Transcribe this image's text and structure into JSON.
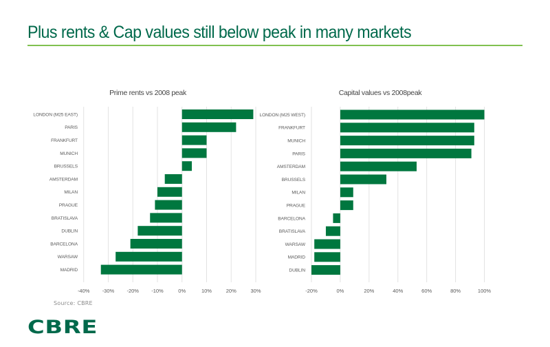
{
  "slide": {
    "title": "Plus rents & Cap values still below peak in many markets",
    "source": "Source: CBRE",
    "logo": "CBRE",
    "colors": {
      "title": "#00694B",
      "rule": "#80C050",
      "bar": "#00773F",
      "logo": "#00694B"
    }
  },
  "chart_data": [
    {
      "type": "bar",
      "orientation": "horizontal",
      "title": "Prime rents vs 2008 peak",
      "xlabel": "",
      "ylabel": "",
      "categories": [
        "LONDON (M25 EAST)",
        "PARIS",
        "FRANKFURT",
        "MUNICH",
        "BRUSSELS",
        "AMSTERDAM",
        "MILAN",
        "PRAGUE",
        "BRATISLAVA",
        "DUBLIN",
        "BARCELONA",
        "WARSAW",
        "MADRID"
      ],
      "values": [
        29,
        22,
        10,
        10,
        4,
        -7,
        -10,
        -11,
        -13,
        -18,
        -21,
        -27,
        -33
      ],
      "unit": "%",
      "xlim": [
        -40,
        30
      ],
      "xticks": [
        -40,
        -30,
        -20,
        -10,
        0,
        10,
        20,
        30
      ],
      "xtick_labels": [
        "-40%",
        "-30%",
        "-20%",
        "-10%",
        "0%",
        "10%",
        "20%",
        "30%"
      ],
      "grid": true,
      "legend": "none"
    },
    {
      "type": "bar",
      "orientation": "horizontal",
      "title": "Capital values vs 2008peak",
      "xlabel": "",
      "ylabel": "",
      "categories": [
        "LONDON (M25 WEST)",
        "FRANKFURT",
        "MUNICH",
        "PARIS",
        "AMSTERDAM",
        "BRUSSELS",
        "MILAN",
        "PRAGUE",
        "BARCELONA",
        "BRATISLAVA",
        "WARSAW",
        "MADRID",
        "DUBLIN"
      ],
      "values": [
        100,
        93,
        93,
        91,
        53,
        32,
        9,
        9,
        -5,
        -10,
        -18,
        -18,
        -20
      ],
      "unit": "%",
      "xlim": [
        -20,
        100
      ],
      "xticks": [
        -20,
        0,
        20,
        40,
        60,
        80,
        100
      ],
      "xtick_labels": [
        "-20%",
        "0%",
        "20%",
        "40%",
        "60%",
        "80%",
        "100%"
      ],
      "grid": true,
      "legend": "none"
    }
  ]
}
